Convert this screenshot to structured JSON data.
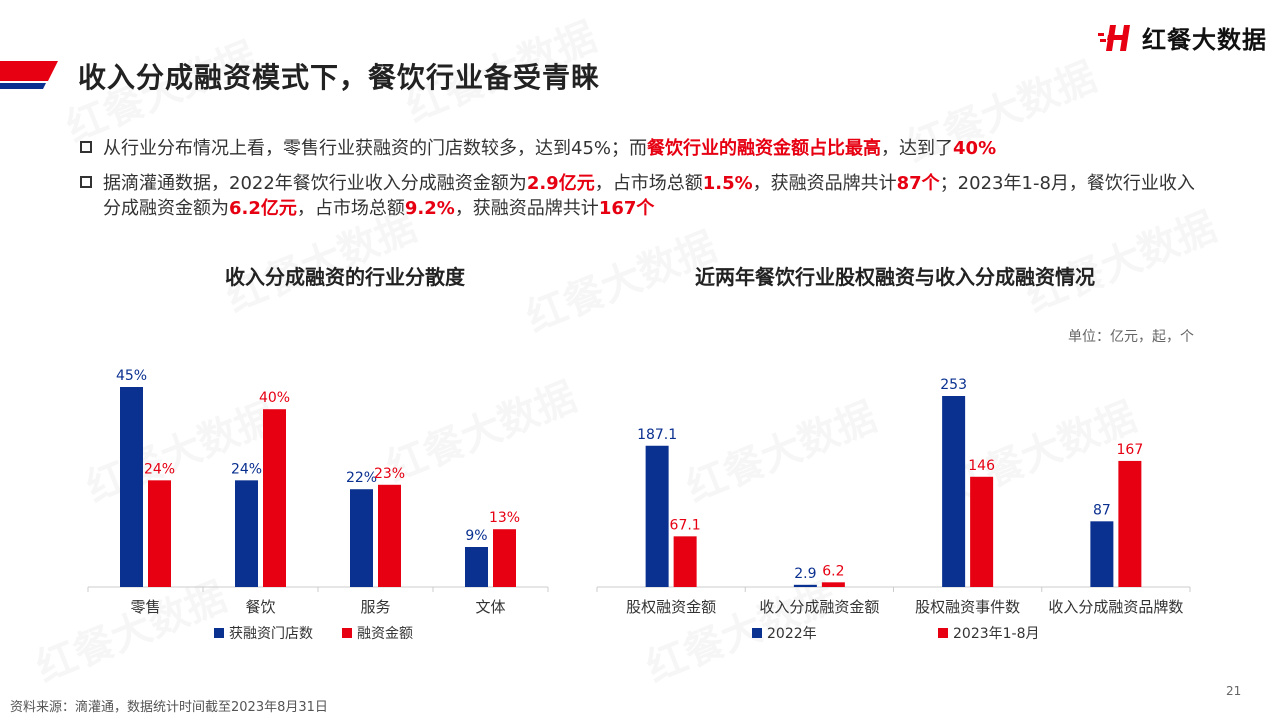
{
  "page": {
    "title": "收入分成融资模式下，餐饮行业备受青睐",
    "logo_text": "红餐大数据",
    "watermark": "红餐大数据",
    "page_number": "21",
    "source": "资料来源：滴灌通，数据统计时间截至2023年8月31日",
    "colors": {
      "blue": "#0a3090",
      "red": "#e60012"
    }
  },
  "bullets": [
    {
      "segments": [
        {
          "text": "从行业分布情况上看，零售行业获融资的门店数较多，达到45%；而",
          "hl": false
        },
        {
          "text": "餐饮行业的融资金额占比最高",
          "hl": true
        },
        {
          "text": "，达到了",
          "hl": false
        },
        {
          "text": "40%",
          "hl": true
        }
      ]
    },
    {
      "segments": [
        {
          "text": "据滴灌通数据，2022年餐饮行业收入分成融资金额为",
          "hl": false
        },
        {
          "text": "2.9亿元",
          "hl": true
        },
        {
          "text": "，占市场总额",
          "hl": false
        },
        {
          "text": "1.5%",
          "hl": true
        },
        {
          "text": "，获融资品牌共计",
          "hl": false
        },
        {
          "text": "87个",
          "hl": true
        },
        {
          "text": "；2023年1-8月，餐饮行业收入分成融资金额为",
          "hl": false
        },
        {
          "text": "6.2亿元",
          "hl": true
        },
        {
          "text": "，占市场总额",
          "hl": false
        },
        {
          "text": "9.2%",
          "hl": true
        },
        {
          "text": "，获融资品牌共计",
          "hl": false
        },
        {
          "text": "167个",
          "hl": true
        }
      ]
    }
  ],
  "chart_data": [
    {
      "type": "bar",
      "title": "收入分成融资的行业分散度",
      "categories": [
        "零售",
        "餐饮",
        "服务",
        "文体"
      ],
      "series": [
        {
          "name": "获融资门店数",
          "values": [
            45,
            24,
            22,
            9
          ],
          "labels": [
            "45%",
            "24%",
            "22%",
            "9%"
          ],
          "color": "#0a3090"
        },
        {
          "name": "融资金额",
          "values": [
            24,
            40,
            23,
            13
          ],
          "labels": [
            "24%",
            "40%",
            "23%",
            "13%"
          ],
          "color": "#e60012"
        }
      ],
      "ylim": [
        0,
        45
      ],
      "xlabel": "",
      "ylabel": "",
      "grid": false,
      "legend": "bottom"
    },
    {
      "type": "bar",
      "title": "近两年餐饮行业股权融资与收入分成融资情况",
      "unit": "单位：亿元，起，个",
      "categories": [
        "股权融资金额",
        "收入分成融资金额",
        "股权融资事件数",
        "收入分成融资品牌数"
      ],
      "series": [
        {
          "name": "2022年",
          "values": [
            187.1,
            2.9,
            253,
            87
          ],
          "labels": [
            "187.1",
            "2.9",
            "253",
            "87"
          ],
          "color": "#0a3090"
        },
        {
          "name": "2023年1-8月",
          "values": [
            67.1,
            6.2,
            146,
            167
          ],
          "labels": [
            "67.1",
            "6.2",
            "146",
            "167"
          ],
          "color": "#e60012"
        }
      ],
      "ylim": [
        0,
        253
      ],
      "xlabel": "",
      "ylabel": "",
      "grid": false,
      "legend": "bottom"
    }
  ]
}
